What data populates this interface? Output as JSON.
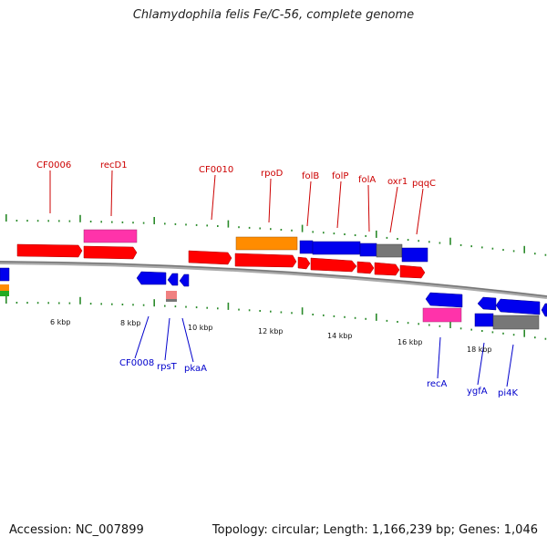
{
  "title": "Chlamydophila felis Fe/C-56, complete genome",
  "accession": "Accession: NC_007899",
  "summary": "Topology: circular; Length: 1,166,239 bp; Genes: 1,046",
  "kbp_ticks": [
    "6 kbp",
    "8 kbp",
    "10 kbp",
    "12 kbp",
    "14 kbp",
    "16 kbp",
    "18 kbp"
  ],
  "upper_labels": [
    "CF0006",
    "recD1",
    "CF0010",
    "rpoD",
    "folB",
    "folP",
    "folA",
    "oxr1",
    "pqqC"
  ],
  "lower_labels": [
    "CF0008",
    "rpsT",
    "pkaA",
    "recA",
    "ygfA",
    "pi4K"
  ],
  "colors": {
    "red": "#ff0000",
    "blue": "#0000ee",
    "magenta": "#ff33aa",
    "orange": "#ff8c00",
    "gray": "#777777",
    "salmon": "#f08080",
    "green": "#22aa22",
    "tick": "#2a8a2a",
    "label_upper": "#cc0000",
    "label_lower": "#0000cc",
    "backbone": "#888888"
  },
  "icons": [
    "gene-arrow-forward",
    "gene-arrow-reverse",
    "backbone-line",
    "label-leader-line"
  ]
}
